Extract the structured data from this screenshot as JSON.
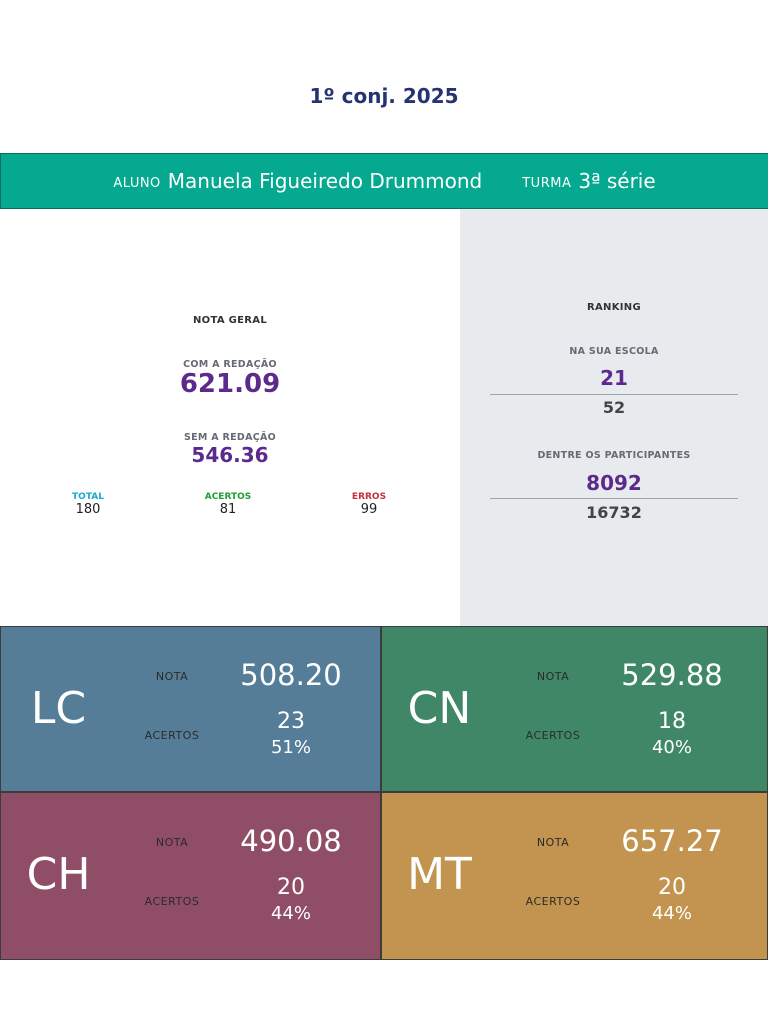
{
  "title": "1º conj. 2025",
  "student": {
    "aluno_label": "ALUNO",
    "name": "Manuela Figueiredo Drummond",
    "turma_label": "TURMA",
    "turma": "3ª série"
  },
  "geral": {
    "heading": "NOTA GERAL",
    "com_redacao_label": "COM A REDAÇÃO",
    "com_redacao_value": "621.09",
    "sem_redacao_label": "SEM A REDAÇÃO",
    "sem_redacao_value": "546.36",
    "total_label": "TOTAL",
    "total_value": "180",
    "acertos_label": "ACERTOS",
    "acertos_value": "81",
    "erros_label": "ERROS",
    "erros_value": "99"
  },
  "ranking": {
    "heading": "RANKING",
    "escola_label": "NA SUA ESCOLA",
    "escola_pos": "21",
    "escola_total": "52",
    "participantes_label": "DENTRE OS PARTICIPANTES",
    "participantes_pos": "8092",
    "participantes_total": "16732"
  },
  "areas": [
    {
      "code": "LC",
      "nota_label": "NOTA",
      "nota": "508.20",
      "acertos_label": "ACERTOS",
      "acertos": "23",
      "pct": "51%",
      "color": "#567d98"
    },
    {
      "code": "CN",
      "nota_label": "NOTA",
      "nota": "529.88",
      "acertos_label": "ACERTOS",
      "acertos": "18",
      "pct": "40%",
      "color": "#3f8767"
    },
    {
      "code": "CH",
      "nota_label": "NOTA",
      "nota": "490.08",
      "acertos_label": "ACERTOS",
      "acertos": "20",
      "pct": "44%",
      "color": "#904e66"
    },
    {
      "code": "MT",
      "nota_label": "NOTA",
      "nota": "657.27",
      "acertos_label": "ACERTOS",
      "acertos": "20",
      "pct": "44%",
      "color": "#c29450"
    }
  ],
  "colors": {
    "brand_bar": "#04a98f",
    "title": "#253470",
    "score": "#5b2a8c",
    "total": "#1ba7cf",
    "acertos": "#1f9e33",
    "erros": "#c72e3c"
  }
}
